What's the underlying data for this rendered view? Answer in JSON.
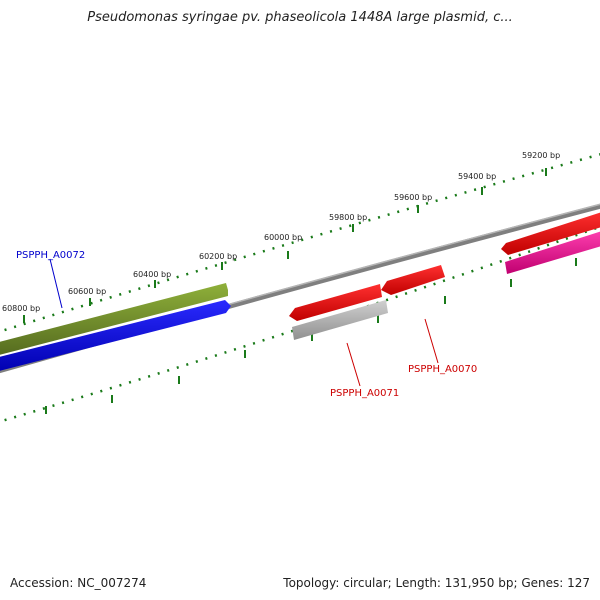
{
  "title": "Pseudomonas syringae pv. phaseolicola 1448A large plasmid, c...",
  "footer": {
    "accession": "Accession: NC_007274",
    "summary": "Topology: circular; Length: 131,950 bp; Genes: 127"
  },
  "ruler": {
    "tick_labels": [
      "59200 bp",
      "59400 bp",
      "59600 bp",
      "59800 bp",
      "60000 bp",
      "60200 bp",
      "60400 bp",
      "60600 bp",
      "60800 bp"
    ]
  },
  "genes": [
    {
      "label": "PSPPH_A0072",
      "color": "#0000cc"
    },
    {
      "label": "PSPPH_A0071",
      "color": "#cc0000"
    },
    {
      "label": "PSPPH_A0070",
      "color": "#cc0000"
    }
  ],
  "colors": {
    "backbone": "#7f7f7f",
    "ruler_dots": "#1a7a1a",
    "feature_green": "#6b8e23",
    "feature_blue": "#0000ee",
    "feature_red": "#ee0000",
    "feature_gray": "#a9a9a9",
    "feature_pink": "#ee1493"
  }
}
